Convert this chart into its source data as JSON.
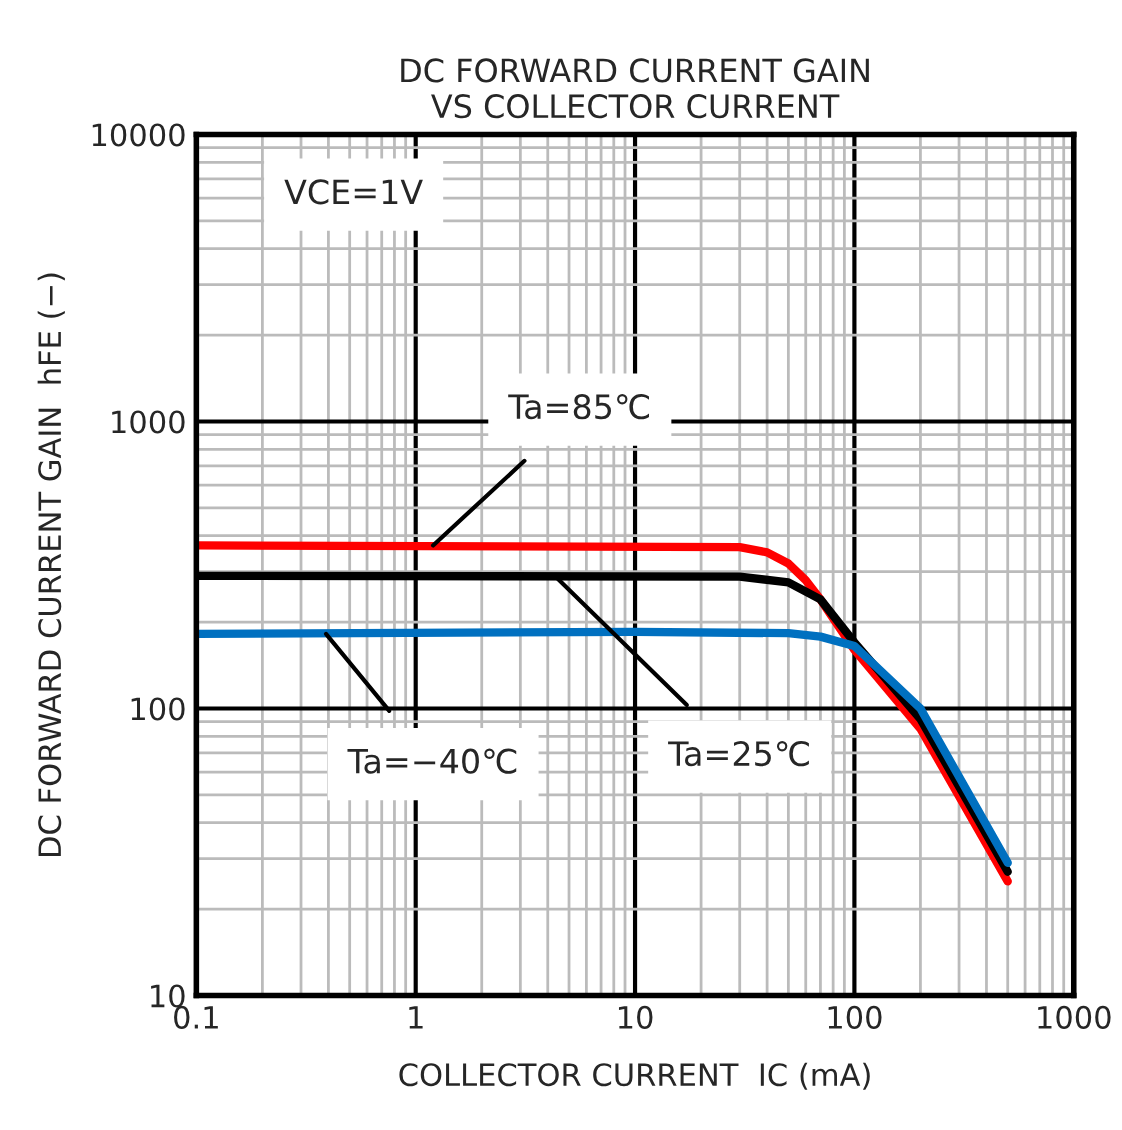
{
  "chart_data": {
    "type": "line",
    "title": "DC FORWARD CURRENT GAIN\nVS COLLECTOR CURRENT",
    "xlabel": "COLLECTOR CURRENT  IC (mA)",
    "ylabel": "DC FORWARD CURRENT GAIN  hFE (−)",
    "log": "xy",
    "xlim": [
      0.1,
      1000
    ],
    "ylim": [
      10,
      10000
    ],
    "xticks": [
      0.1,
      1,
      10,
      100,
      1000
    ],
    "yticks": [
      10,
      100,
      1000,
      10000
    ],
    "grid": true,
    "line_style": "solid",
    "series": [
      {
        "color": "#ff0000",
        "x": [
          0.1,
          30,
          40,
          50,
          60,
          70,
          100,
          200,
          500
        ],
        "values": [
          370,
          365,
          350,
          320,
          280,
          240,
          160,
          85,
          25
        ]
      },
      {
        "color": "#000000",
        "x": [
          0.1,
          30,
          50,
          70,
          100,
          200,
          500
        ],
        "values": [
          290,
          288,
          275,
          240,
          170,
          92,
          27
        ]
      },
      {
        "color": "#0070c0",
        "x": [
          0.1,
          10,
          50,
          70,
          100,
          200,
          500
        ],
        "values": [
          182,
          185,
          183,
          178,
          165,
          100,
          29
        ]
      }
    ],
    "annotations": [
      "VCE=1V",
      {
        "text": "Ta=85℃",
        "x": 1.2,
        "y": 370
      },
      {
        "text": "Ta=25℃",
        "x": 4.3,
        "y": 290
      },
      {
        "text": "Ta=−40℃",
        "x": 0.39,
        "y": 182
      }
    ]
  }
}
